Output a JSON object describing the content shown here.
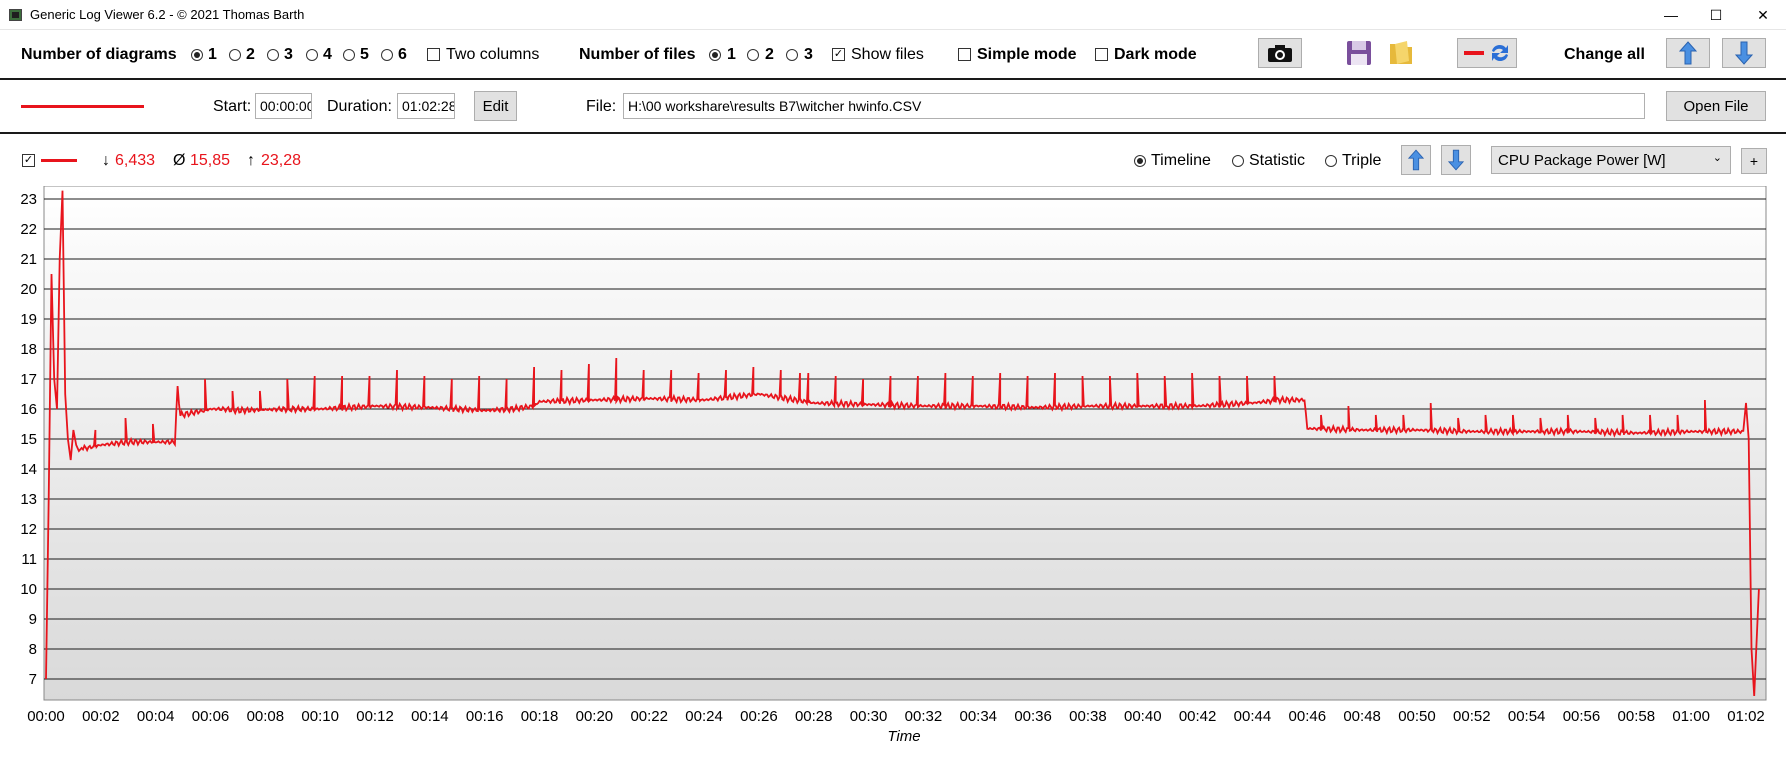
{
  "window": {
    "title": "Generic Log Viewer 6.2 - © 2021 Thomas Barth",
    "minimize": "—",
    "maximize": "☐",
    "close": "✕"
  },
  "toolbar": {
    "diagrams_label": "Number of diagrams",
    "diagram_options": [
      "1",
      "2",
      "3",
      "4",
      "5",
      "6"
    ],
    "diagrams_selected": "1",
    "two_columns_label": "Two columns",
    "two_columns_checked": false,
    "files_label": "Number of files",
    "file_options": [
      "1",
      "2",
      "3"
    ],
    "files_selected": "1",
    "show_files_label": "Show files",
    "show_files_checked": true,
    "simple_mode_label": "Simple mode",
    "simple_mode_checked": false,
    "dark_mode_label": "Dark mode",
    "dark_mode_checked": false,
    "change_all_label": "Change all",
    "icons": {
      "screenshot": "camera-icon",
      "save": "save-icon",
      "open": "folder-icon",
      "swap": "swap-color-icon",
      "up": "arrow-up-icon",
      "down": "arrow-down-icon"
    }
  },
  "file_row": {
    "start_label": "Start:",
    "start_value": "00:00:00",
    "duration_label": "Duration:",
    "duration_value": "01:02:28",
    "edit_label": "Edit",
    "file_label": "File:",
    "file_path": "H:\\00 workshare\\results B7\\witcher hwinfo.CSV",
    "open_file_label": "Open File",
    "line_color": "#e8141c"
  },
  "diagram_header": {
    "show_checked": true,
    "min_symbol": "↓",
    "min_value": "6,433",
    "avg_symbol": "Ø",
    "avg_value": "15,85",
    "max_symbol": "↑",
    "max_value": "23,28",
    "views": [
      "Timeline",
      "Statistic",
      "Triple"
    ],
    "view_selected": "Timeline",
    "channel": "CPU Package Power [W]",
    "add_label": "+"
  },
  "chart_data": {
    "type": "line",
    "title": "",
    "xlabel": "Time",
    "ylabel": "",
    "ylim": [
      6.433,
      23.28
    ],
    "xlim_min": [
      0,
      62.47
    ],
    "yticks": [
      7,
      8,
      9,
      10,
      11,
      12,
      13,
      14,
      15,
      16,
      17,
      18,
      19,
      20,
      21,
      22,
      23
    ],
    "xtick_labels": [
      "00:00",
      "00:02",
      "00:04",
      "00:06",
      "00:08",
      "00:10",
      "00:12",
      "00:14",
      "00:16",
      "00:18",
      "00:20",
      "00:22",
      "00:24",
      "00:26",
      "00:28",
      "00:30",
      "00:32",
      "00:34",
      "00:36",
      "00:38",
      "00:40",
      "00:42",
      "00:44",
      "00:46",
      "00:48",
      "00:50",
      "00:52",
      "00:54",
      "00:56",
      "00:58",
      "01:00",
      "01:02"
    ],
    "grid": true,
    "background": "gradient white to light gray",
    "series": [
      {
        "color": "#e8141c",
        "x_min": [
          0,
          0.1,
          0.2,
          0.3,
          0.4,
          0.5,
          0.6,
          0.7,
          0.8,
          0.9,
          1.0,
          1.1,
          1.2,
          1.3,
          1.5,
          2.0,
          2.5,
          3.0,
          3.5,
          4.0,
          4.7,
          4.8,
          4.9,
          5.5,
          5.8,
          6.0,
          6.5,
          7.0,
          8.0,
          9.0,
          10.0,
          12.0,
          14.0,
          16.0,
          17.0,
          17.8,
          18.0,
          20.0,
          22.0,
          24.0,
          26.0,
          27.0,
          28.0,
          30.0,
          32.0,
          34.0,
          36.0,
          38.0,
          40.0,
          42.0,
          44.0,
          45.0,
          45.9,
          46.0,
          48.0,
          50.0,
          52.0,
          54.0,
          56.0,
          58.0,
          60.0,
          61.0,
          61.9,
          62.0,
          62.1,
          62.2,
          62.3,
          62.47
        ],
        "values": [
          7.0,
          13.0,
          20.5,
          17.0,
          16.0,
          21.0,
          23.28,
          16.5,
          15.0,
          14.3,
          15.3,
          14.8,
          14.6,
          14.7,
          14.7,
          14.8,
          14.85,
          14.9,
          14.9,
          14.9,
          14.9,
          16.7,
          15.8,
          15.9,
          15.95,
          16.0,
          16.0,
          15.95,
          15.98,
          16.0,
          16.0,
          16.1,
          16.05,
          15.95,
          16.0,
          16.1,
          16.25,
          16.3,
          16.35,
          16.3,
          16.5,
          16.35,
          16.2,
          16.15,
          16.1,
          16.1,
          16.05,
          16.1,
          16.1,
          16.1,
          16.2,
          16.3,
          16.3,
          15.35,
          15.3,
          15.3,
          15.25,
          15.25,
          15.25,
          15.2,
          15.25,
          15.25,
          15.25,
          16.2,
          15.0,
          8.0,
          6.433,
          10.0
        ]
      }
    ],
    "spikes_min": [
      0.9,
      1.8,
      2.9,
      3.9,
      5.8,
      6.8,
      7.8,
      8.8,
      9.8,
      10.8,
      11.8,
      12.8,
      13.8,
      14.8,
      15.8,
      16.8,
      17.8,
      18.8,
      19.8,
      20.8,
      21.8,
      22.8,
      23.8,
      24.8,
      25.8,
      26.8,
      27.5,
      27.8,
      28.8,
      29.8,
      30.8,
      31.8,
      32.8,
      33.8,
      34.8,
      35.8,
      36.8,
      37.8,
      38.8,
      39.8,
      40.8,
      41.8,
      42.8,
      43.8,
      44.8,
      46.5,
      47.5,
      48.5,
      49.5,
      50.5,
      51.5,
      52.5,
      53.5,
      54.5,
      55.5,
      56.5,
      57.5,
      58.5,
      59.5,
      60.5
    ],
    "spike_values": [
      15.3,
      15.3,
      15.7,
      15.5,
      17.0,
      16.6,
      16.6,
      17.0,
      17.1,
      17.1,
      17.1,
      17.3,
      17.1,
      17.0,
      17.1,
      17.0,
      17.4,
      17.3,
      17.5,
      17.7,
      17.3,
      17.3,
      17.2,
      17.3,
      17.4,
      17.3,
      17.2,
      17.2,
      17.1,
      17.0,
      17.1,
      17.1,
      17.2,
      17.1,
      17.2,
      17.1,
      17.2,
      17.1,
      17.1,
      17.2,
      17.1,
      17.2,
      17.1,
      17.1,
      17.1,
      15.8,
      16.1,
      15.8,
      15.8,
      16.2,
      15.7,
      15.8,
      15.8,
      15.7,
      15.8,
      15.7,
      15.8,
      15.8,
      15.8,
      16.3
    ]
  }
}
